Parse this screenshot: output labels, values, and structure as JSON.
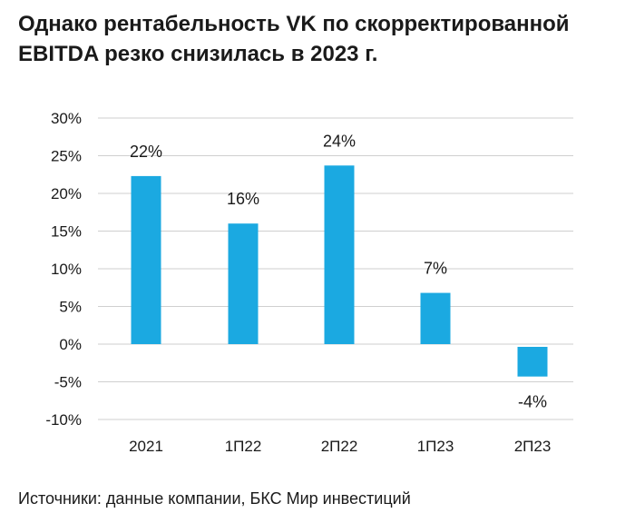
{
  "chart_data": {
    "type": "bar",
    "title": "Однако рентабельность VK по скорректированной EBITDA резко снизилась в 2023 г.",
    "categories": [
      "2021",
      "1П22",
      "2П22",
      "1П23",
      "2П23"
    ],
    "values": [
      22.3,
      16.0,
      23.7,
      6.8,
      -4.3
    ],
    "data_labels": [
      "22%",
      "16%",
      "24%",
      "7%",
      "-4%"
    ],
    "yticks": [
      30,
      25,
      20,
      15,
      10,
      5,
      0,
      -5,
      -10
    ],
    "ytick_labels": [
      "30%",
      "25%",
      "20%",
      "15%",
      "10%",
      "5%",
      "0%",
      "-5%",
      "-10%"
    ],
    "ylim": [
      -10,
      30
    ],
    "xlabel": "",
    "ylabel": "",
    "grid": true,
    "colors": {
      "bar": "#1ba9e1",
      "grid": "#cfcfcf",
      "text": "#1a1a1a"
    }
  },
  "source_text": "Источники: данные компании, БКС Мир инвестиций"
}
